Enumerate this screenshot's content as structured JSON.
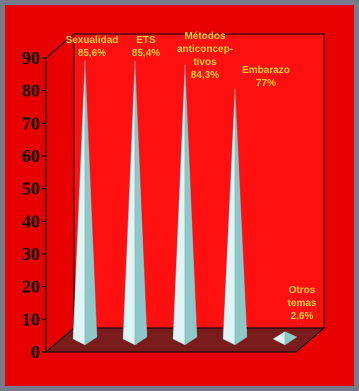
{
  "chart_data": {
    "type": "bar",
    "bar_shape": "pyramid",
    "three_d": true,
    "categories": [
      "Sexualidad 85,6%",
      "ETS 85,4%",
      "Métodos anticoncep- tivos 84,3%",
      "Embarazo 77%",
      "Otros temas 2,6%"
    ],
    "values": [
      85.6,
      85.4,
      84.3,
      77,
      2.6
    ],
    "data_labels": [
      [
        "Sexualidad",
        "85,6%"
      ],
      [
        "ETS",
        "85,4%"
      ],
      [
        "Métodos",
        "anticoncep-",
        "tivos",
        "84,3%"
      ],
      [
        "Embarazo",
        "77%"
      ],
      [
        "Otros",
        "temas",
        "2,6%"
      ]
    ],
    "yticks": [
      "0",
      "10",
      "20",
      "30",
      "40",
      "50",
      "60",
      "70",
      "80",
      "90"
    ],
    "ylim": [
      0,
      90
    ],
    "grid": false,
    "legend": "none",
    "colors": {
      "background": "#757b89",
      "plot_fill": "#e80000",
      "wall": "#ff1010",
      "floor": "#7a1c1c",
      "axis": "#000000",
      "pyramid_light": "#dff4f4",
      "pyramid_dark": "#8fc8c8",
      "label": "#ffcc33"
    }
  }
}
